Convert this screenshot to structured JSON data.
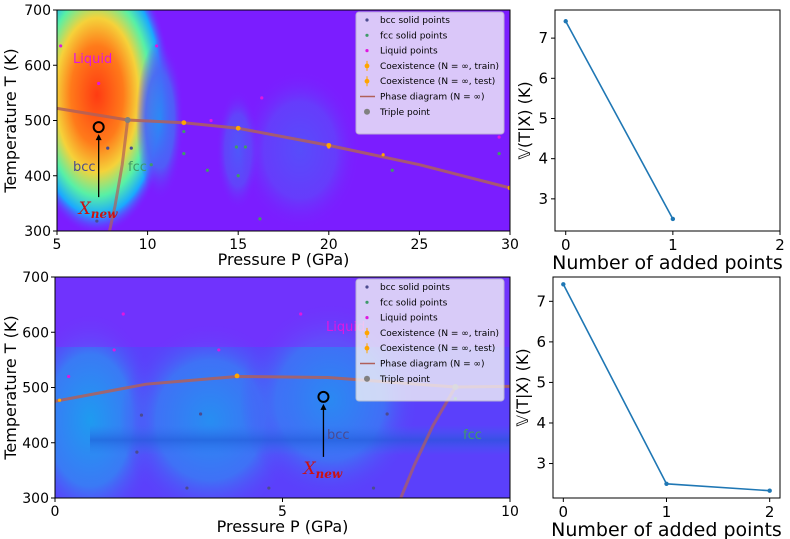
{
  "colors": {
    "purple": "#7b1dff",
    "bcc": "#4b4b8f",
    "fcc": "#3f9a6a",
    "liquid": "#e017e0",
    "coexist": "#ffa500",
    "phase": "#b0605a",
    "triple": "#808080",
    "line": "#1f77b4",
    "xnew": "#cc1111"
  },
  "legend": {
    "bcc": "bcc solid points",
    "fcc": "fcc solid points",
    "liquid": "Liquid points",
    "coex_train": "Coexistence (N = ∞, train)",
    "coex_test": "Coexistence (N = ∞, test)",
    "phase": "Phase diagram (N = ∞)",
    "triple": "Triple point"
  },
  "chart_data": [
    {
      "type": "heatmap",
      "id": "top-left",
      "xlabel": "Pressure P (GPa)",
      "ylabel": "Temperature T (K)",
      "xlim": [
        5,
        30
      ],
      "ylim": [
        300,
        700
      ],
      "xticks": [
        "5",
        "10",
        "15",
        "20",
        "25",
        "30"
      ],
      "yticks": [
        "300",
        "400",
        "500",
        "600",
        "700"
      ],
      "region_labels": {
        "liquid": "Liquid",
        "bcc": "bcc",
        "fcc": "fcc"
      },
      "new_point_label": "X_new",
      "new_point": {
        "x": 7.3,
        "y": 488
      },
      "triple_point": {
        "x": 8.9,
        "y": 501
      },
      "liquidus": [
        [
          5,
          522
        ],
        [
          8.9,
          501
        ],
        [
          12,
          496
        ],
        [
          15,
          486
        ],
        [
          20,
          455
        ],
        [
          25,
          420
        ],
        [
          30,
          378
        ]
      ],
      "bcc_fcc": [
        [
          8.9,
          501
        ],
        [
          8.6,
          420
        ],
        [
          8.2,
          345
        ],
        [
          7.9,
          300
        ]
      ],
      "bcc_points": [
        [
          7.8,
          450
        ],
        [
          9.1,
          450
        ],
        [
          7.2,
          318
        ]
      ],
      "fcc_points": [
        [
          12,
          440
        ],
        [
          13.3,
          410
        ],
        [
          15,
          400
        ],
        [
          15.4,
          452
        ],
        [
          16.2,
          322
        ],
        [
          23.5,
          410
        ],
        [
          29.4,
          440
        ],
        [
          12,
          480
        ],
        [
          10.2,
          420
        ],
        [
          14.9,
          452
        ]
      ],
      "liquid_points": [
        [
          5.2,
          635
        ],
        [
          7.3,
          567
        ],
        [
          10.5,
          635
        ],
        [
          16.3,
          541
        ],
        [
          29.4,
          470
        ],
        [
          13.5,
          500
        ]
      ],
      "coexistence_train": [
        [
          12,
          496
        ],
        [
          15,
          486
        ],
        [
          20,
          455
        ],
        [
          30,
          378
        ]
      ],
      "coexistence_test": [
        [
          20,
          452
        ],
        [
          23,
          438
        ]
      ]
    },
    {
      "type": "line",
      "id": "top-right",
      "xlabel": "Number of added points",
      "ylabel": "𝕍(T|X) (K)",
      "xlim": [
        -0.1,
        2
      ],
      "ylim": [
        2.2,
        7.7
      ],
      "xticks": [
        "0",
        "1",
        "2"
      ],
      "yticks": [
        "3",
        "4",
        "5",
        "6",
        "7"
      ],
      "x": [
        0,
        1
      ],
      "y": [
        7.42,
        2.5
      ]
    },
    {
      "type": "heatmap",
      "id": "bottom-left",
      "xlabel": "Pressure P (GPa)",
      "ylabel": "Temperature T (K)",
      "xlim": [
        0,
        10
      ],
      "ylim": [
        300,
        700
      ],
      "xticks": [
        "0",
        "5",
        "10"
      ],
      "yticks": [
        "300",
        "400",
        "500",
        "600",
        "700"
      ],
      "region_labels": {
        "liquid": "Liquid",
        "bcc": "bcc",
        "fcc": "fcc"
      },
      "new_point_label": "X_new",
      "new_point": {
        "x": 5.9,
        "y": 483
      },
      "triple_point": {
        "x": 8.8,
        "y": 501
      },
      "liquidus": [
        [
          0,
          475
        ],
        [
          2,
          506
        ],
        [
          4,
          520
        ],
        [
          6,
          518
        ],
        [
          8.8,
          501
        ],
        [
          10,
          502
        ]
      ],
      "bcc_fcc": [
        [
          8.8,
          501
        ],
        [
          8.3,
          430
        ],
        [
          7.9,
          360
        ],
        [
          7.6,
          300
        ]
      ],
      "bcc_points": [
        [
          1.9,
          450
        ],
        [
          1.8,
          383
        ],
        [
          3.2,
          452
        ],
        [
          2.9,
          318
        ],
        [
          7.3,
          452
        ],
        [
          7.0,
          318
        ],
        [
          4.7,
          318
        ]
      ],
      "fcc_points": [
        [
          8.8,
          480
        ]
      ],
      "liquid_points": [
        [
          0.3,
          520
        ],
        [
          1.5,
          633
        ],
        [
          1.3,
          568
        ],
        [
          3.6,
          568
        ],
        [
          5.4,
          633
        ]
      ],
      "coexistence_train": [
        [
          4,
          521
        ]
      ],
      "coexistence_test": [
        [
          0.1,
          477
        ]
      ]
    },
    {
      "type": "line",
      "id": "bottom-right",
      "xlabel": "Number of added points",
      "ylabel": "𝕍(T|X) (K)",
      "xlim": [
        -0.1,
        2.1
      ],
      "ylim": [
        2.15,
        7.6
      ],
      "xticks": [
        "0",
        "1",
        "2"
      ],
      "yticks": [
        "3",
        "4",
        "5",
        "6",
        "7"
      ],
      "x": [
        0,
        1,
        2
      ],
      "y": [
        7.42,
        2.5,
        2.33
      ]
    }
  ]
}
